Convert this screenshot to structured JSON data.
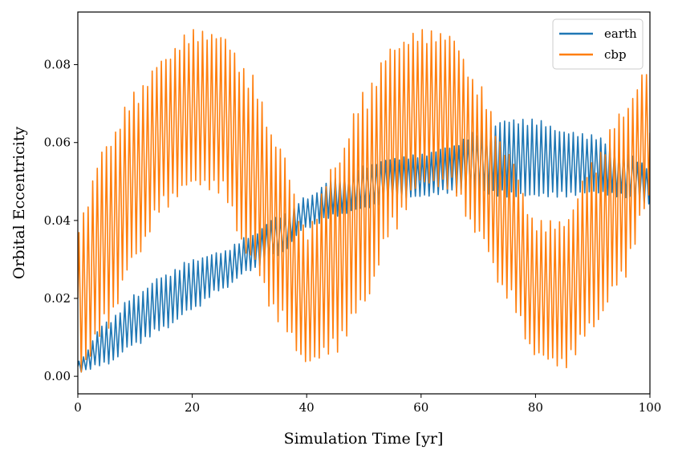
{
  "chart_data": {
    "type": "line",
    "title": "",
    "xlabel": "Simulation Time [yr]",
    "ylabel": "Orbital Eccentricity",
    "xlim": [
      0,
      100
    ],
    "ylim": [
      -0.0045,
      0.0935
    ],
    "xticks": [
      0,
      20,
      40,
      60,
      80,
      100
    ],
    "xtick_labels": [
      "0",
      "20",
      "40",
      "60",
      "80",
      "100"
    ],
    "yticks": [
      0.0,
      0.02,
      0.04,
      0.06,
      0.08
    ],
    "ytick_labels": [
      "0.00",
      "0.02",
      "0.04",
      "0.06",
      "0.08"
    ],
    "grid": false,
    "legend_position": "top-right",
    "series": [
      {
        "name": "earth",
        "color": "#1f77b4",
        "x": [
          0,
          5,
          10,
          15,
          20,
          25,
          30,
          35,
          40,
          45,
          50,
          55,
          60,
          65,
          70,
          75,
          80,
          85,
          90,
          95,
          100
        ],
        "y_min": [
          0.001,
          0.003,
          0.008,
          0.012,
          0.017,
          0.022,
          0.027,
          0.031,
          0.038,
          0.041,
          0.043,
          0.045,
          0.046,
          0.047,
          0.047,
          0.046,
          0.046,
          0.046,
          0.047,
          0.046,
          0.044
        ],
        "y_max": [
          0.004,
          0.014,
          0.021,
          0.026,
          0.03,
          0.032,
          0.036,
          0.041,
          0.046,
          0.051,
          0.054,
          0.056,
          0.057,
          0.059,
          0.063,
          0.066,
          0.066,
          0.063,
          0.062,
          0.058,
          0.054
        ]
      },
      {
        "name": "cbp",
        "color": "#ff7f0e",
        "x": [
          0,
          5,
          10,
          15,
          20,
          25,
          30,
          35,
          40,
          45,
          50,
          55,
          60,
          65,
          70,
          75,
          80,
          85,
          90,
          95,
          100
        ],
        "y_min": [
          0.0,
          0.012,
          0.03,
          0.043,
          0.049,
          0.047,
          0.03,
          0.014,
          0.003,
          0.006,
          0.018,
          0.037,
          0.049,
          0.048,
          0.036,
          0.02,
          0.005,
          0.002,
          0.012,
          0.024,
          0.045
        ],
        "y_max": [
          0.04,
          0.06,
          0.073,
          0.082,
          0.089,
          0.088,
          0.078,
          0.06,
          0.038,
          0.055,
          0.073,
          0.085,
          0.089,
          0.088,
          0.075,
          0.058,
          0.04,
          0.04,
          0.055,
          0.068,
          0.08
        ]
      }
    ],
    "oscillation_period_yr": 0.8
  }
}
